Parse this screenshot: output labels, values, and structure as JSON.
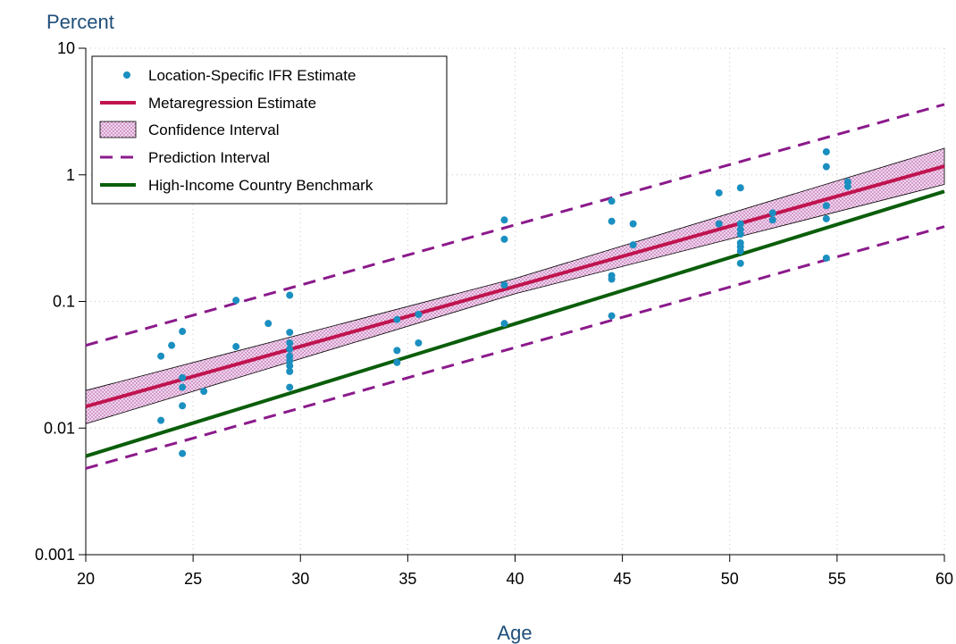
{
  "chart_data": {
    "type": "scatter",
    "ylabel": "Percent",
    "xlabel": "Age",
    "xlim": [
      20,
      60
    ],
    "ylim": [
      0.001,
      10
    ],
    "y_scale": "log",
    "x_ticks": [
      20,
      25,
      30,
      35,
      40,
      45,
      50,
      55,
      60
    ],
    "x_tick_labels": [
      "20",
      "25",
      "30",
      "35",
      "40",
      "45",
      "50",
      "55",
      "60"
    ],
    "y_ticks": [
      0.001,
      0.01,
      0.1,
      1,
      10
    ],
    "y_tick_labels": [
      "0.001",
      "0.01",
      "0.1",
      "1",
      "10"
    ],
    "grid": true,
    "legend_position": "top-left",
    "legend": [
      {
        "key": "points",
        "label": "Location-Specific IFR Estimate"
      },
      {
        "key": "meta",
        "label": "Metaregression Estimate"
      },
      {
        "key": "ci",
        "label": "Confidence Interval"
      },
      {
        "key": "pi",
        "label": "Prediction Interval"
      },
      {
        "key": "hic",
        "label": "High-Income Country Benchmark"
      }
    ],
    "colors": {
      "points": "#1a8fc0",
      "meta": "#c0134f",
      "ci_fill": "#f2d4ec",
      "ci_dots": "#a0479a",
      "pi": "#8b1a8b",
      "hic": "#0b5e0b",
      "title": "#1f4e79"
    },
    "series": [
      {
        "key": "points",
        "name": "Location-Specific IFR Estimate",
        "type": "scatter",
        "points": [
          [
            23.5,
            0.037
          ],
          [
            23.5,
            0.0115
          ],
          [
            24,
            0.045
          ],
          [
            24.5,
            0.058
          ],
          [
            24.5,
            0.025
          ],
          [
            24.5,
            0.021
          ],
          [
            24.5,
            0.015
          ],
          [
            24.5,
            0.0063
          ],
          [
            25.5,
            0.0195
          ],
          [
            27,
            0.102
          ],
          [
            27,
            0.044
          ],
          [
            28.5,
            0.067
          ],
          [
            29.5,
            0.112
          ],
          [
            29.5,
            0.057
          ],
          [
            29.5,
            0.047
          ],
          [
            29.5,
            0.042
          ],
          [
            29.5,
            0.037
          ],
          [
            29.5,
            0.034
          ],
          [
            29.5,
            0.031
          ],
          [
            29.5,
            0.028
          ],
          [
            29.5,
            0.021
          ],
          [
            34.5,
            0.072
          ],
          [
            34.5,
            0.041
          ],
          [
            34.5,
            0.033
          ],
          [
            35.5,
            0.079
          ],
          [
            35.5,
            0.047
          ],
          [
            39.5,
            0.44
          ],
          [
            39.5,
            0.31
          ],
          [
            39.5,
            0.135
          ],
          [
            39.5,
            0.067
          ],
          [
            44.5,
            0.62
          ],
          [
            44.5,
            0.43
          ],
          [
            44.5,
            0.16
          ],
          [
            44.5,
            0.15
          ],
          [
            44.5,
            0.077
          ],
          [
            45.5,
            0.41
          ],
          [
            45.5,
            0.28
          ],
          [
            49.5,
            0.72
          ],
          [
            49.5,
            0.41
          ],
          [
            50.5,
            0.79
          ],
          [
            50.5,
            0.41
          ],
          [
            50.5,
            0.37
          ],
          [
            50.5,
            0.34
          ],
          [
            50.5,
            0.29
          ],
          [
            50.5,
            0.27
          ],
          [
            50.5,
            0.25
          ],
          [
            50.5,
            0.2
          ],
          [
            52,
            0.5
          ],
          [
            52,
            0.44
          ],
          [
            54.5,
            1.52
          ],
          [
            54.5,
            1.16
          ],
          [
            54.5,
            0.57
          ],
          [
            54.5,
            0.45
          ],
          [
            54.5,
            0.22
          ],
          [
            55.5,
            0.88
          ],
          [
            55.5,
            0.81
          ]
        ]
      },
      {
        "key": "meta",
        "name": "Metaregression Estimate",
        "type": "line",
        "x": [
          20,
          60
        ],
        "y": [
          0.0148,
          1.17
        ]
      },
      {
        "key": "ci",
        "name": "Confidence Interval",
        "type": "band",
        "x": [
          20,
          40,
          60
        ],
        "lower": [
          0.0108,
          0.115,
          0.84
        ],
        "upper": [
          0.0198,
          0.152,
          1.62
        ]
      },
      {
        "key": "pi_upper",
        "name": "Prediction Interval",
        "type": "dashed-line",
        "x": [
          20,
          60
        ],
        "y": [
          0.045,
          3.6
        ]
      },
      {
        "key": "pi_lower",
        "name": "Prediction Interval",
        "type": "dashed-line",
        "x": [
          20,
          60
        ],
        "y": [
          0.0048,
          0.39
        ]
      },
      {
        "key": "hic",
        "name": "High-Income Country Benchmark",
        "type": "line",
        "x": [
          20,
          60
        ],
        "y": [
          0.006,
          0.74
        ]
      }
    ]
  }
}
